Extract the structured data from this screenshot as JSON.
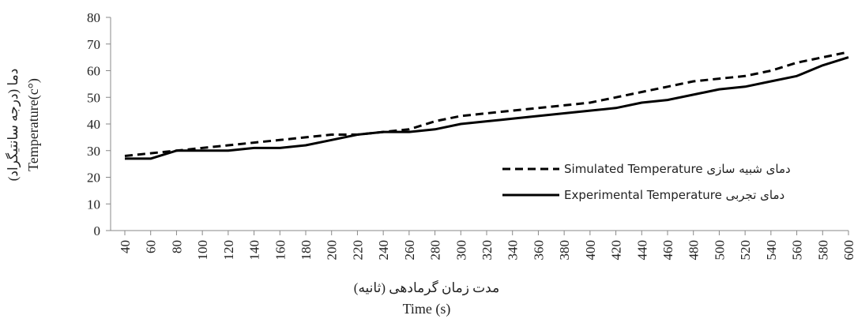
{
  "chart_data": {
    "type": "line",
    "title": "",
    "xlabel": [
      "مدت زمان گرمادهی (ثانیه)",
      "Time (s)"
    ],
    "ylabel": [
      "دما (درجه سانتیگراد)",
      "Temperature(c°)"
    ],
    "x": [
      40,
      60,
      80,
      100,
      120,
      140,
      160,
      180,
      200,
      220,
      240,
      260,
      280,
      300,
      320,
      340,
      360,
      380,
      400,
      420,
      440,
      460,
      480,
      500,
      520,
      540,
      560,
      580,
      600
    ],
    "ylim": [
      0,
      80
    ],
    "yticks": [
      0,
      10,
      20,
      30,
      40,
      50,
      60,
      70,
      80
    ],
    "grid": false,
    "legend_position": "right",
    "series": [
      {
        "name": "Simulated Temperature دمای شبیه سازی",
        "style": "dashed",
        "color": "#000000",
        "values": [
          28,
          29,
          30,
          31,
          32,
          33,
          34,
          35,
          36,
          36,
          37,
          38,
          41,
          43,
          44,
          45,
          46,
          47,
          48,
          50,
          52,
          54,
          56,
          57,
          58,
          60,
          63,
          65,
          67
        ]
      },
      {
        "name": "Experimental Temperature دمای تجربی",
        "style": "solid",
        "color": "#000000",
        "values": [
          27,
          27,
          30,
          30,
          30,
          31,
          31,
          32,
          34,
          36,
          37,
          37,
          38,
          40,
          41,
          42,
          43,
          44,
          45,
          46,
          48,
          49,
          51,
          53,
          54,
          56,
          58,
          62,
          65
        ]
      }
    ]
  }
}
